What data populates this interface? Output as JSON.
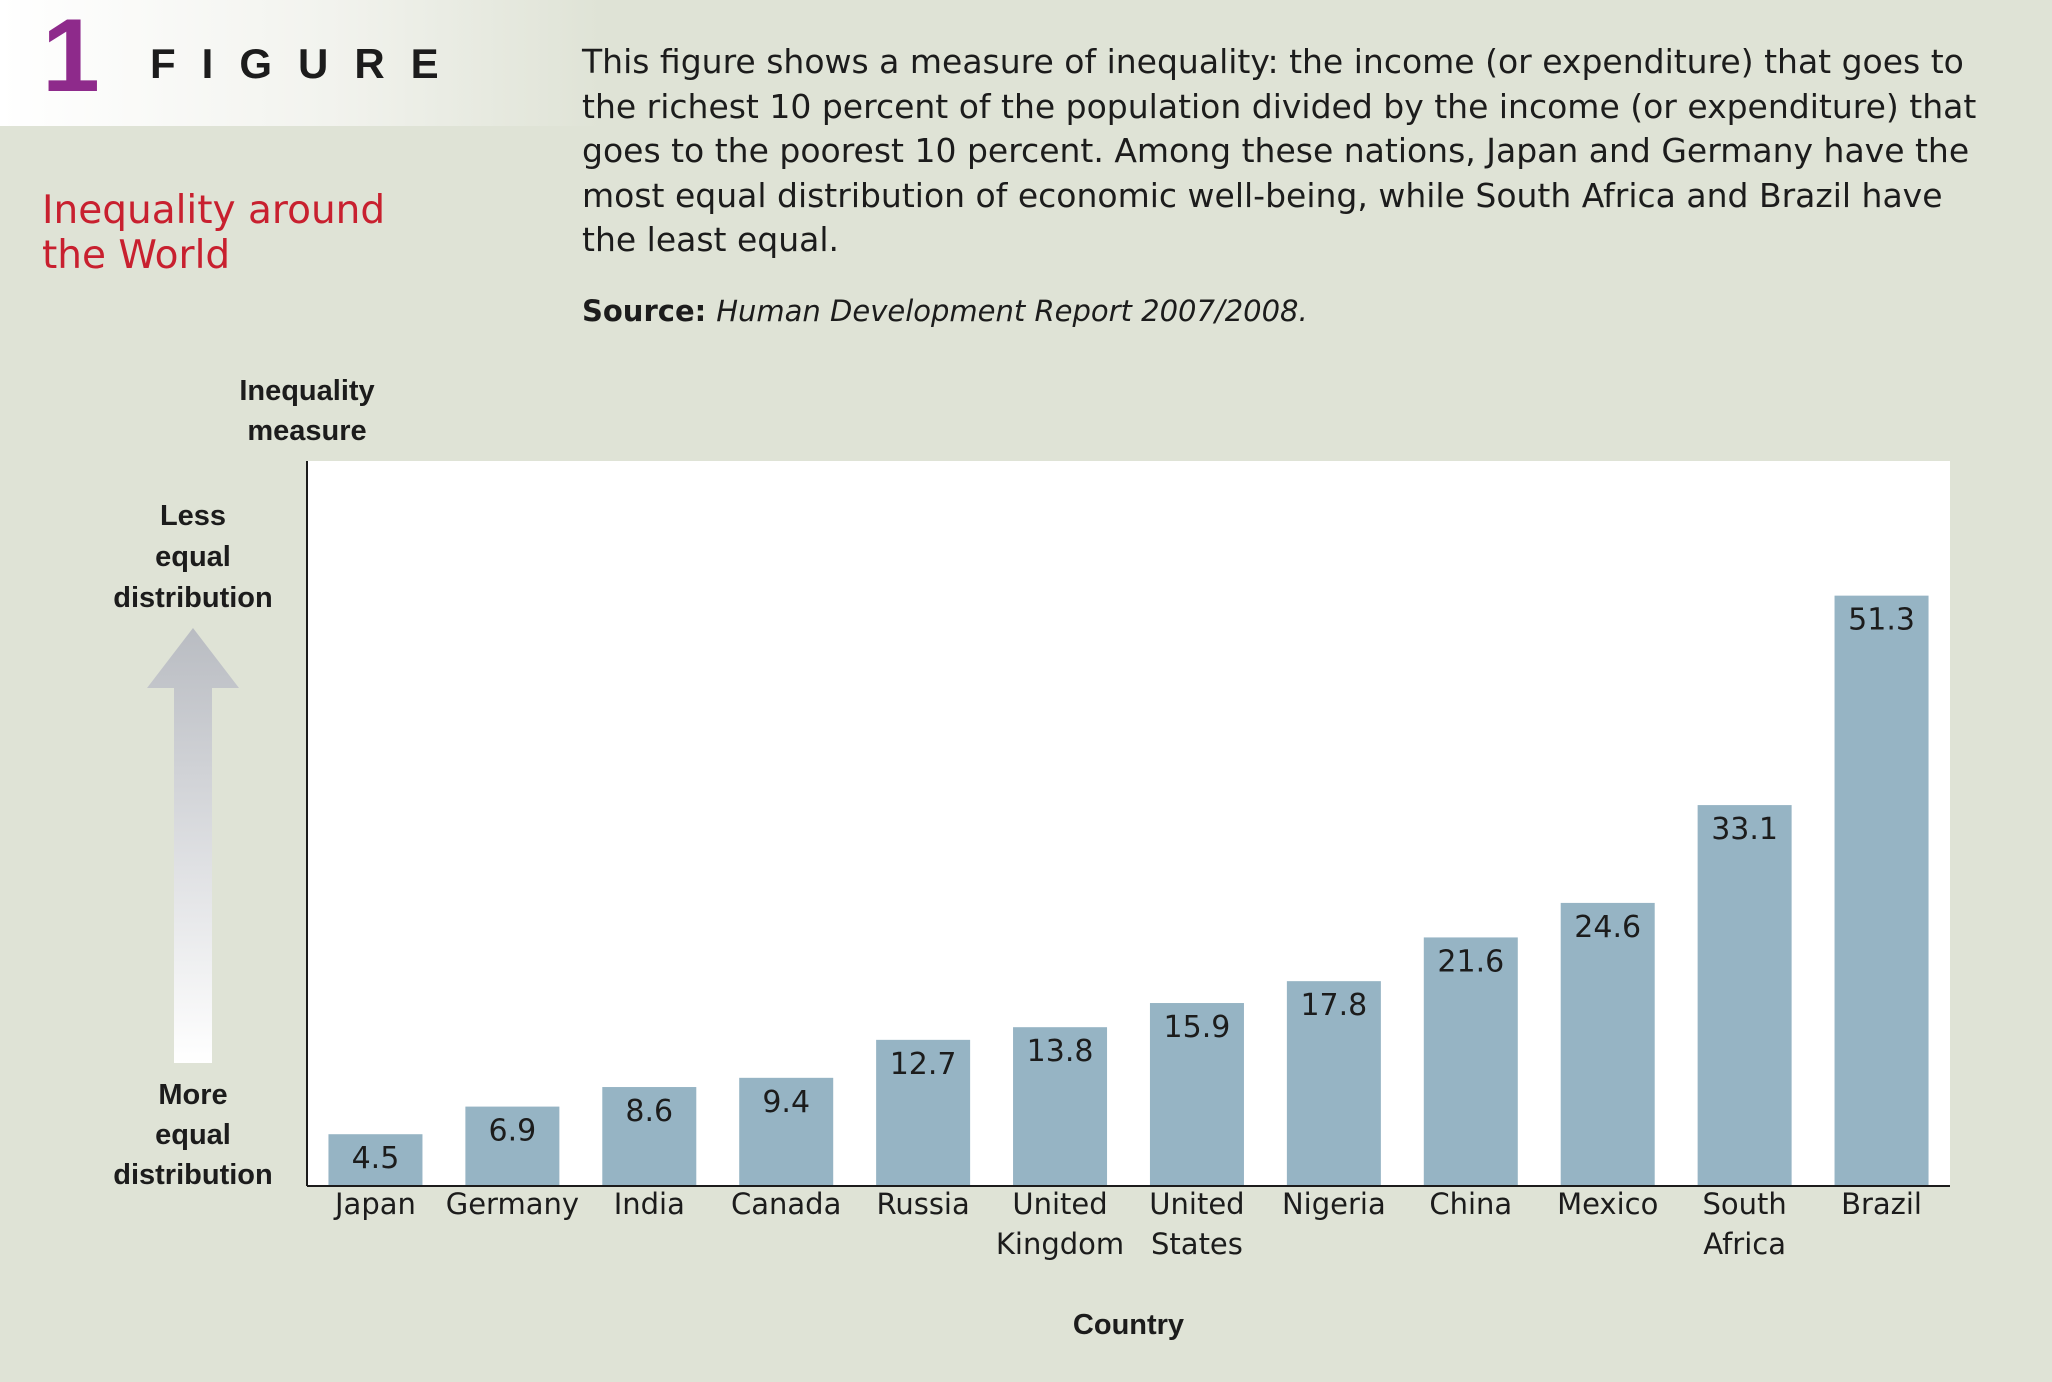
{
  "figure": {
    "number": "1",
    "label": "FIGURE",
    "title_line1": "Inequality around",
    "title_line2": "the World",
    "caption": "This figure shows a measure of inequality: the income (or expenditure) that goes to the richest 10 percent of the population divided by the income (or expenditure) that goes to the poorest 10 percent. Among these nations, Japan and Germany have the most equal distribution of economic well-being, while South Africa and Brazil have the least equal.",
    "source_label": "Source:",
    "source_text": "Human Development Report 2007/2008."
  },
  "chart_data": {
    "type": "bar",
    "categories": [
      "Japan",
      "Germany",
      "India",
      "Canada",
      "Russia",
      "United Kingdom",
      "United States",
      "Nigeria",
      "China",
      "Mexico",
      "South Africa",
      "Brazil"
    ],
    "category_lines": [
      [
        "Japan"
      ],
      [
        "Germany"
      ],
      [
        "India"
      ],
      [
        "Canada"
      ],
      [
        "Russia"
      ],
      [
        "United",
        "Kingdom"
      ],
      [
        "United",
        "States"
      ],
      [
        "Nigeria"
      ],
      [
        "China"
      ],
      [
        "Mexico"
      ],
      [
        "South",
        "Africa"
      ],
      [
        "Brazil"
      ]
    ],
    "values": [
      4.5,
      6.9,
      8.6,
      9.4,
      12.7,
      13.8,
      15.9,
      17.8,
      21.6,
      24.6,
      33.1,
      51.3
    ],
    "value_labels": [
      "4.5",
      "6.9",
      "8.6",
      "9.4",
      "12.7",
      "13.8",
      "15.9",
      "17.8",
      "21.6",
      "24.6",
      "33.1",
      "51.3"
    ],
    "ylabel_lines": [
      "Inequality",
      "measure"
    ],
    "xlabel": "Country",
    "ylim": [
      0,
      63
    ],
    "grid": false,
    "legend": "none",
    "top_annotation_lines": [
      "Less",
      "equal",
      "distribution"
    ],
    "bottom_annotation_lines": [
      "More",
      "equal",
      "distribution"
    ],
    "bar_color": "#96b4c4",
    "plot_background": "#ffffff"
  },
  "colors": {
    "figure_number": "#8e2a8b",
    "title": "#c8202f",
    "page_background": "#dfe3d6"
  }
}
